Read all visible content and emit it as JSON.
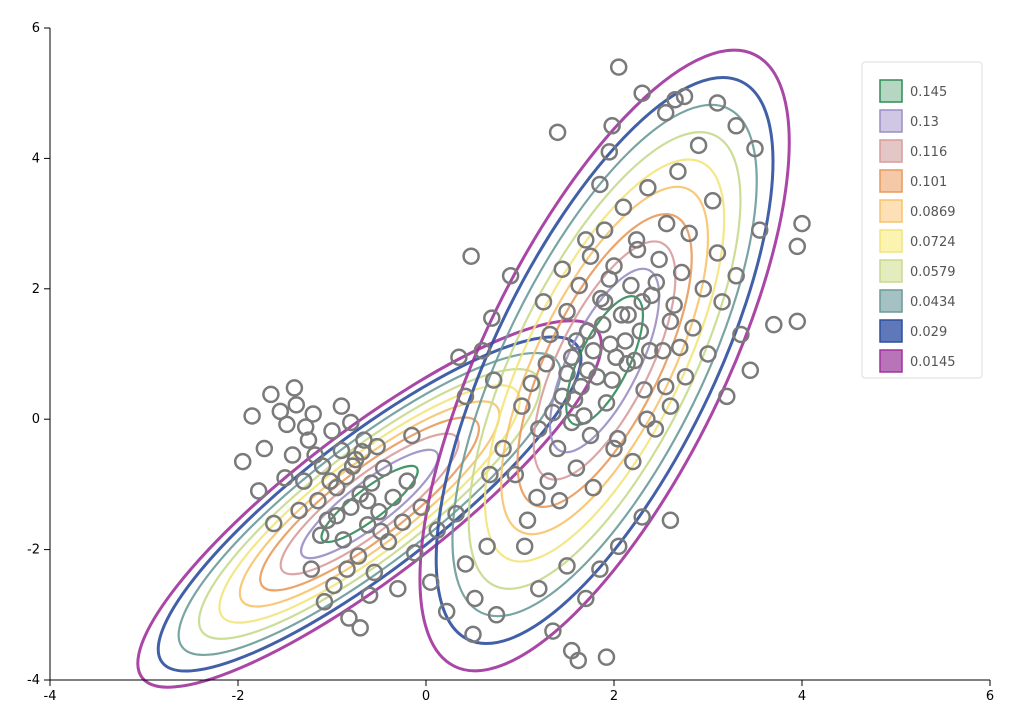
{
  "chart_data": {
    "type": "scatter",
    "title": "",
    "xlabel": "",
    "ylabel": "",
    "xlim": [
      -4,
      6
    ],
    "ylim": [
      -4,
      6
    ],
    "x_ticks": [
      -4,
      -2,
      0,
      2,
      4,
      6
    ],
    "y_ticks": [
      -4,
      -2,
      0,
      2,
      4,
      6
    ],
    "grid": false,
    "legend_placement": "top-right",
    "clusters": [
      {
        "center": [
          -0.6,
          -1.3
        ],
        "cov": [
          [
            0.9,
            0.55
          ],
          [
            0.55,
            0.6
          ]
        ]
      },
      {
        "center": [
          1.9,
          0.9
        ],
        "cov": [
          [
            0.75,
            0.55
          ],
          [
            0.55,
            1.6
          ]
        ]
      }
    ],
    "contour_levels": [
      {
        "label": "0.145",
        "color": "#2e8b57",
        "fill": "#b5d6c0"
      },
      {
        "label": "0.13",
        "color": "#9a8ec4",
        "fill": "#cfc7e3"
      },
      {
        "label": "0.116",
        "color": "#d99c9c",
        "fill": "#e3c6c6"
      },
      {
        "label": "0.101",
        "color": "#e89a5c",
        "fill": "#f4c9a8"
      },
      {
        "label": "0.0869",
        "color": "#f7c36b",
        "fill": "#fde0b5"
      },
      {
        "label": "0.0724",
        "color": "#f2e47a",
        "fill": "#fbf3b0"
      },
      {
        "label": "0.0579",
        "color": "#c7d98c",
        "fill": "#e4ecbf"
      },
      {
        "label": "0.0434",
        "color": "#6a9a9a",
        "fill": "#a6c1c3"
      },
      {
        "label": "0.029",
        "color": "#2e4f9e",
        "fill": "#5f78b9"
      },
      {
        "label": "0.0145",
        "color": "#a0329c",
        "fill": "#b874b8"
      }
    ],
    "points": [
      [
        -1.85,
        0.05
      ],
      [
        -1.72,
        -0.45
      ],
      [
        -1.65,
        0.38
      ],
      [
        -1.55,
        0.12
      ],
      [
        -1.48,
        -0.08
      ],
      [
        -1.42,
        -0.55
      ],
      [
        -1.38,
        0.22
      ],
      [
        -1.3,
        -0.95
      ],
      [
        -1.25,
        -0.32
      ],
      [
        -1.2,
        0.08
      ],
      [
        -1.15,
        -1.25
      ],
      [
        -1.1,
        -0.72
      ],
      [
        -1.05,
        -1.55
      ],
      [
        -1.0,
        -0.18
      ],
      [
        -0.95,
        -1.05
      ],
      [
        -0.9,
        -0.48
      ],
      [
        -0.88,
        -1.85
      ],
      [
        -0.85,
        -0.88
      ],
      [
        -0.8,
        -1.35
      ],
      [
        -0.75,
        -0.62
      ],
      [
        -0.72,
        -2.1
      ],
      [
        -0.7,
        -1.15
      ],
      [
        -0.66,
        -0.32
      ],
      [
        -0.62,
        -1.62
      ],
      [
        -0.58,
        -0.98
      ],
      [
        -0.55,
        -2.35
      ],
      [
        -0.5,
        -1.42
      ],
      [
        -0.45,
        -0.75
      ],
      [
        -0.4,
        -1.88
      ],
      [
        -0.35,
        -1.2
      ],
      [
        -0.3,
        -2.6
      ],
      [
        -0.25,
        -1.58
      ],
      [
        -0.2,
        -0.95
      ],
      [
        -0.12,
        -2.05
      ],
      [
        -0.05,
        -1.35
      ],
      [
        0.05,
        -2.5
      ],
      [
        0.12,
        -1.7
      ],
      [
        0.22,
        -2.95
      ],
      [
        0.32,
        -1.45
      ],
      [
        0.42,
        -2.22
      ],
      [
        0.52,
        -2.75
      ],
      [
        0.65,
        -1.95
      ],
      [
        0.75,
        -3.0
      ],
      [
        -1.95,
        -0.65
      ],
      [
        -1.78,
        -1.1
      ],
      [
        -1.62,
        -1.6
      ],
      [
        -1.5,
        -0.9
      ],
      [
        -1.35,
        -1.4
      ],
      [
        -1.22,
        -2.3
      ],
      [
        -1.08,
        -2.8
      ],
      [
        -0.98,
        -2.55
      ],
      [
        -0.82,
        -3.05
      ],
      [
        -0.7,
        -3.2
      ],
      [
        -0.6,
        -2.7
      ],
      [
        -1.4,
        0.48
      ],
      [
        -0.9,
        0.2
      ],
      [
        -0.8,
        -0.05
      ],
      [
        -0.68,
        -0.5
      ],
      [
        -0.15,
        -0.25
      ],
      [
        0.5,
        -3.3
      ],
      [
        -1.18,
        -0.55
      ],
      [
        -1.02,
        -0.95
      ],
      [
        -0.95,
        -1.48
      ],
      [
        -0.78,
        -0.72
      ],
      [
        -0.62,
        -1.25
      ],
      [
        -0.48,
        -1.72
      ],
      [
        -1.28,
        -0.12
      ],
      [
        -1.12,
        -1.78
      ],
      [
        -0.84,
        -2.3
      ],
      [
        -0.52,
        -0.42
      ],
      [
        1.05,
        -1.95
      ],
      [
        1.2,
        -2.6
      ],
      [
        1.35,
        -3.25
      ],
      [
        1.5,
        -2.25
      ],
      [
        1.55,
        -3.55
      ],
      [
        1.62,
        -3.7
      ],
      [
        1.7,
        -2.75
      ],
      [
        1.85,
        -2.3
      ],
      [
        1.92,
        -3.65
      ],
      [
        2.05,
        -1.95
      ],
      [
        2.3,
        -1.5
      ],
      [
        2.6,
        -1.55
      ],
      [
        1.02,
        0.2
      ],
      [
        1.12,
        0.55
      ],
      [
        1.2,
        -0.15
      ],
      [
        1.28,
        0.85
      ],
      [
        1.32,
        1.3
      ],
      [
        1.4,
        -0.45
      ],
      [
        1.45,
        0.35
      ],
      [
        1.5,
        1.65
      ],
      [
        1.55,
        0.95
      ],
      [
        1.6,
        -0.75
      ],
      [
        1.63,
        2.05
      ],
      [
        1.68,
        0.05
      ],
      [
        1.72,
        1.35
      ],
      [
        1.75,
        2.5
      ],
      [
        1.78,
        -1.05
      ],
      [
        1.82,
        0.65
      ],
      [
        1.86,
        1.85
      ],
      [
        1.9,
        2.9
      ],
      [
        1.92,
        0.25
      ],
      [
        1.96,
        1.15
      ],
      [
        2.0,
        2.35
      ],
      [
        2.04,
        -0.3
      ],
      [
        2.08,
        1.6
      ],
      [
        2.1,
        3.25
      ],
      [
        2.14,
        0.85
      ],
      [
        2.18,
        2.05
      ],
      [
        2.2,
        -0.65
      ],
      [
        2.24,
        2.75
      ],
      [
        2.28,
        1.35
      ],
      [
        2.32,
        0.45
      ],
      [
        2.36,
        3.55
      ],
      [
        2.4,
        1.9
      ],
      [
        2.44,
        -0.15
      ],
      [
        2.48,
        2.45
      ],
      [
        2.52,
        1.05
      ],
      [
        2.56,
        3.0
      ],
      [
        2.6,
        0.2
      ],
      [
        2.64,
        1.75
      ],
      [
        2.68,
        3.8
      ],
      [
        2.72,
        2.25
      ],
      [
        2.76,
        0.65
      ],
      [
        2.8,
        2.85
      ],
      [
        2.84,
        1.4
      ],
      [
        2.9,
        4.2
      ],
      [
        2.95,
        2.0
      ],
      [
        3.0,
        1.0
      ],
      [
        3.05,
        3.35
      ],
      [
        3.1,
        2.55
      ],
      [
        3.15,
        1.8
      ],
      [
        3.2,
        0.35
      ],
      [
        3.3,
        2.2
      ],
      [
        3.35,
        1.3
      ],
      [
        3.45,
        0.75
      ],
      [
        3.55,
        2.9
      ],
      [
        3.7,
        1.45
      ],
      [
        3.95,
        2.65
      ],
      [
        4.0,
        3.0
      ],
      [
        3.95,
        1.5
      ],
      [
        1.4,
        4.4
      ],
      [
        1.85,
        3.6
      ],
      [
        1.95,
        4.1
      ],
      [
        1.98,
        4.5
      ],
      [
        2.05,
        5.4
      ],
      [
        2.3,
        5.0
      ],
      [
        2.55,
        4.7
      ],
      [
        2.65,
        4.9
      ],
      [
        2.75,
        4.95
      ],
      [
        3.1,
        4.85
      ],
      [
        3.3,
        4.5
      ],
      [
        3.5,
        4.15
      ],
      [
        0.48,
        2.5
      ],
      [
        0.9,
        2.2
      ],
      [
        0.7,
        1.55
      ],
      [
        0.6,
        1.05
      ],
      [
        0.35,
        0.95
      ],
      [
        0.42,
        0.35
      ],
      [
        0.72,
        0.6
      ],
      [
        0.68,
        -0.85
      ],
      [
        0.82,
        -0.45
      ],
      [
        0.95,
        -0.85
      ],
      [
        1.08,
        -1.55
      ],
      [
        1.18,
        -1.2
      ],
      [
        1.3,
        -0.95
      ],
      [
        1.42,
        -1.25
      ],
      [
        1.55,
        -0.05
      ],
      [
        1.65,
        0.5
      ],
      [
        1.78,
        1.05
      ],
      [
        1.88,
        1.45
      ],
      [
        1.98,
        0.6
      ],
      [
        2.12,
        1.2
      ],
      [
        2.22,
        0.9
      ],
      [
        2.38,
        1.05
      ],
      [
        2.02,
        0.95
      ],
      [
        1.72,
        0.75
      ],
      [
        1.9,
        1.8
      ],
      [
        2.15,
        1.6
      ],
      [
        1.6,
        1.2
      ],
      [
        1.5,
        0.7
      ],
      [
        1.35,
        0.1
      ],
      [
        1.25,
        1.8
      ],
      [
        1.45,
        2.3
      ],
      [
        1.7,
        2.75
      ],
      [
        2.25,
        2.6
      ],
      [
        2.45,
        2.1
      ],
      [
        2.6,
        1.5
      ],
      [
        2.7,
        1.1
      ],
      [
        2.55,
        0.5
      ],
      [
        2.35,
        0.0
      ],
      [
        2.0,
        -0.45
      ],
      [
        1.75,
        -0.25
      ],
      [
        1.58,
        0.3
      ],
      [
        1.95,
        2.15
      ],
      [
        2.3,
        1.8
      ]
    ]
  }
}
